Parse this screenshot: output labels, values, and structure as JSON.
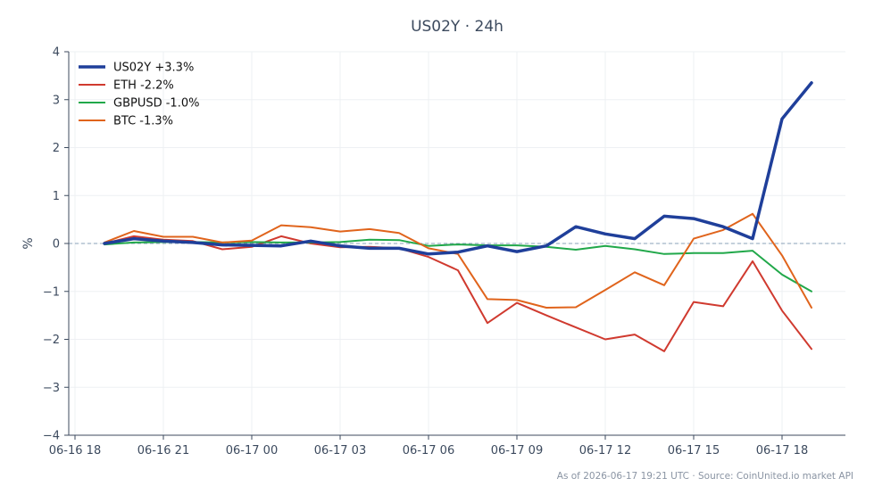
{
  "chart_data": {
    "type": "line",
    "title": "US02Y · 24h",
    "xlabel": "",
    "ylabel": "%",
    "ylim": [
      -4,
      4
    ],
    "yticks": [
      -4,
      -3,
      -2,
      -1,
      0,
      1,
      2,
      3,
      4
    ],
    "ytick_labels": [
      "−4",
      "−3",
      "−2",
      "−1",
      "0",
      "1",
      "2",
      "3",
      "4"
    ],
    "xticks": [
      "06-16 18",
      "06-16 21",
      "06-17 00",
      "06-17 03",
      "06-17 06",
      "06-17 09",
      "06-17 12",
      "06-17 15",
      "06-17 18"
    ],
    "xlim_hours_from_first_tick": [
      0,
      26
    ],
    "x": [
      "06-16 19",
      "06-16 20",
      "06-16 21",
      "06-16 22",
      "06-16 23",
      "06-17 00",
      "06-17 01",
      "06-17 02",
      "06-17 03",
      "06-17 04",
      "06-17 05",
      "06-17 06",
      "06-17 07",
      "06-17 08",
      "06-17 09",
      "06-17 10",
      "06-17 11",
      "06-17 12",
      "06-17 13",
      "06-17 14",
      "06-17 15",
      "06-17 16",
      "06-17 17",
      "06-17 18",
      "06-17 19"
    ],
    "grid": true,
    "zero_line": true,
    "legend_position": "top-left",
    "series": [
      {
        "name": "US02Y +3.3%",
        "color": "#1f3f9a",
        "width": 3.5,
        "values": [
          0.0,
          0.1,
          0.05,
          0.02,
          -0.03,
          -0.04,
          -0.05,
          0.05,
          -0.05,
          -0.1,
          -0.1,
          -0.22,
          -0.18,
          -0.05,
          -0.17,
          -0.05,
          0.35,
          0.2,
          0.1,
          0.57,
          0.52,
          0.35,
          0.1,
          2.6,
          3.35
        ]
      },
      {
        "name": "ETH -2.2%",
        "color": "#d03a2f",
        "width": 2,
        "values": [
          0.0,
          0.15,
          0.08,
          0.05,
          -0.12,
          -0.07,
          0.15,
          0.0,
          -0.08,
          -0.07,
          -0.1,
          -0.28,
          -0.56,
          -1.66,
          -1.24,
          -1.5,
          -1.75,
          -2.0,
          -1.9,
          -2.25,
          -1.22,
          -1.31,
          -0.37,
          -1.4,
          -2.2
        ]
      },
      {
        "name": "GBPUSD -1.0%",
        "color": "#21a84a",
        "width": 2,
        "values": [
          -0.02,
          0.02,
          0.03,
          0.03,
          0.02,
          0.03,
          0.02,
          0.02,
          0.03,
          0.08,
          0.07,
          -0.05,
          -0.02,
          -0.04,
          -0.04,
          -0.07,
          -0.13,
          -0.05,
          -0.12,
          -0.22,
          -0.2,
          -0.2,
          -0.15,
          -0.65,
          -1.0
        ]
      },
      {
        "name": "BTC -1.3%",
        "color": "#e0641c",
        "width": 2,
        "values": [
          0.02,
          0.26,
          0.14,
          0.14,
          0.02,
          0.06,
          0.38,
          0.34,
          0.25,
          0.3,
          0.22,
          -0.1,
          -0.22,
          -1.16,
          -1.18,
          -1.34,
          -1.33,
          -0.97,
          -0.6,
          -0.87,
          0.1,
          0.28,
          0.62,
          -0.25,
          -1.34
        ]
      }
    ]
  },
  "footnote": "As of 2026-06-17 19:21 UTC · Source: CoinUnited.io market API"
}
